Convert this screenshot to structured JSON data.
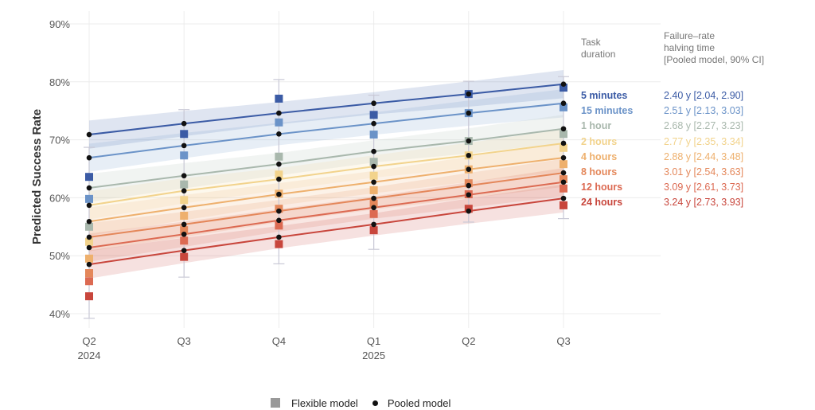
{
  "chart_data": {
    "type": "line",
    "title": "",
    "xlabel": "",
    "ylabel": "Predicted Success Rate",
    "ylim": [
      38,
      92
    ],
    "yticks": [
      40,
      50,
      60,
      70,
      80,
      90
    ],
    "ytick_labels": [
      "40%",
      "50%",
      "60%",
      "70%",
      "80%",
      "90%"
    ],
    "grid": true,
    "categories": [
      "Q2 2024",
      "Q3",
      "Q4",
      "Q1 2025",
      "Q2",
      "Q3"
    ],
    "xtick_labels": [
      {
        "line1": "Q2",
        "line2": "2024"
      },
      {
        "line1": "Q3",
        "line2": ""
      },
      {
        "line1": "Q4",
        "line2": ""
      },
      {
        "line1": "Q1",
        "line2": "2025"
      },
      {
        "line1": "Q2",
        "line2": ""
      },
      {
        "line1": "Q3",
        "line2": ""
      }
    ],
    "series": [
      {
        "name": "5 minutes",
        "color": "#3b5ba5",
        "halving": "2.40 y [2.04, 2.90]",
        "pooled": [
          70.9,
          72.8,
          74.6,
          76.3,
          77.9,
          79.6
        ],
        "flexible": [
          63.6,
          71.0,
          77.1,
          74.3,
          77.9,
          79.0
        ]
      },
      {
        "name": "15 minutes",
        "color": "#6b93c8",
        "halving": "2.51 y [2.13, 3.03]",
        "pooled": [
          66.9,
          69.0,
          71.0,
          72.8,
          74.6,
          76.3
        ],
        "flexible": [
          59.8,
          67.3,
          73.0,
          70.9,
          74.6,
          75.6
        ]
      },
      {
        "name": "1 hour",
        "color": "#a9b8ad",
        "halving": "2.68 y [2.27, 3.23]",
        "pooled": [
          61.7,
          63.8,
          65.8,
          68.0,
          69.8,
          71.9
        ],
        "flexible": [
          55.0,
          62.3,
          67.1,
          66.2,
          69.8,
          71.0
        ]
      },
      {
        "name": "2 hours",
        "color": "#f2d38c",
        "halving": "2.77 y [2.35, 3.34]",
        "pooled": [
          58.7,
          61.2,
          63.2,
          65.4,
          67.3,
          69.4
        ],
        "flexible": [
          52.4,
          59.6,
          64.0,
          63.8,
          67.3,
          68.6
        ]
      },
      {
        "name": "4 hours",
        "color": "#eeb06d",
        "halving": "2.88 y [2.44, 3.48]",
        "pooled": [
          55.9,
          58.3,
          60.6,
          62.7,
          64.9,
          66.9
        ],
        "flexible": [
          49.5,
          56.9,
          60.7,
          61.3,
          64.9,
          65.8
        ]
      },
      {
        "name": "8 hours",
        "color": "#e4875a",
        "halving": "3.01 y [2.54, 3.63]",
        "pooled": [
          53.2,
          55.4,
          57.7,
          59.9,
          62.1,
          64.3
        ],
        "flexible": [
          47.0,
          54.4,
          58.1,
          59.0,
          62.5,
          63.2
        ]
      },
      {
        "name": "12 hours",
        "color": "#dc6a52",
        "halving": "3.09 y [2.61, 3.73]",
        "pooled": [
          51.4,
          53.7,
          56.1,
          58.3,
          60.5,
          62.7
        ],
        "flexible": [
          45.6,
          52.6,
          55.2,
          57.2,
          60.6,
          61.6
        ]
      },
      {
        "name": "24 hours",
        "color": "#c8463c",
        "halving": "3.24 y [2.73, 3.93]",
        "pooled": [
          48.5,
          50.9,
          53.2,
          55.4,
          57.7,
          59.9
        ],
        "flexible": [
          43.0,
          49.8,
          52.0,
          54.4,
          58.1,
          58.7
        ]
      }
    ],
    "band_halfwidth_pct": 1.8,
    "error_bars": [
      {
        "low": 39.2,
        "high": 68.7
      },
      {
        "low": 46.3,
        "high": 75.2
      },
      {
        "low": 48.6,
        "high": 80.4
      },
      {
        "low": 51.1,
        "high": 77.7
      },
      {
        "low": 55.8,
        "high": 80.1
      },
      {
        "low": 56.4,
        "high": 80.9
      }
    ],
    "legend": {
      "placement": "bottom",
      "entries": [
        {
          "label": "Flexible model",
          "marker": "square",
          "color": "#999999"
        },
        {
          "label": "Pooled model",
          "marker": "dot",
          "color": "#111111"
        }
      ]
    }
  },
  "side_table": {
    "col1_header": [
      "Task",
      "duration"
    ],
    "col2_header": [
      "Failure–rate",
      "halving time",
      "[Pooled model, 90% CI]"
    ]
  }
}
